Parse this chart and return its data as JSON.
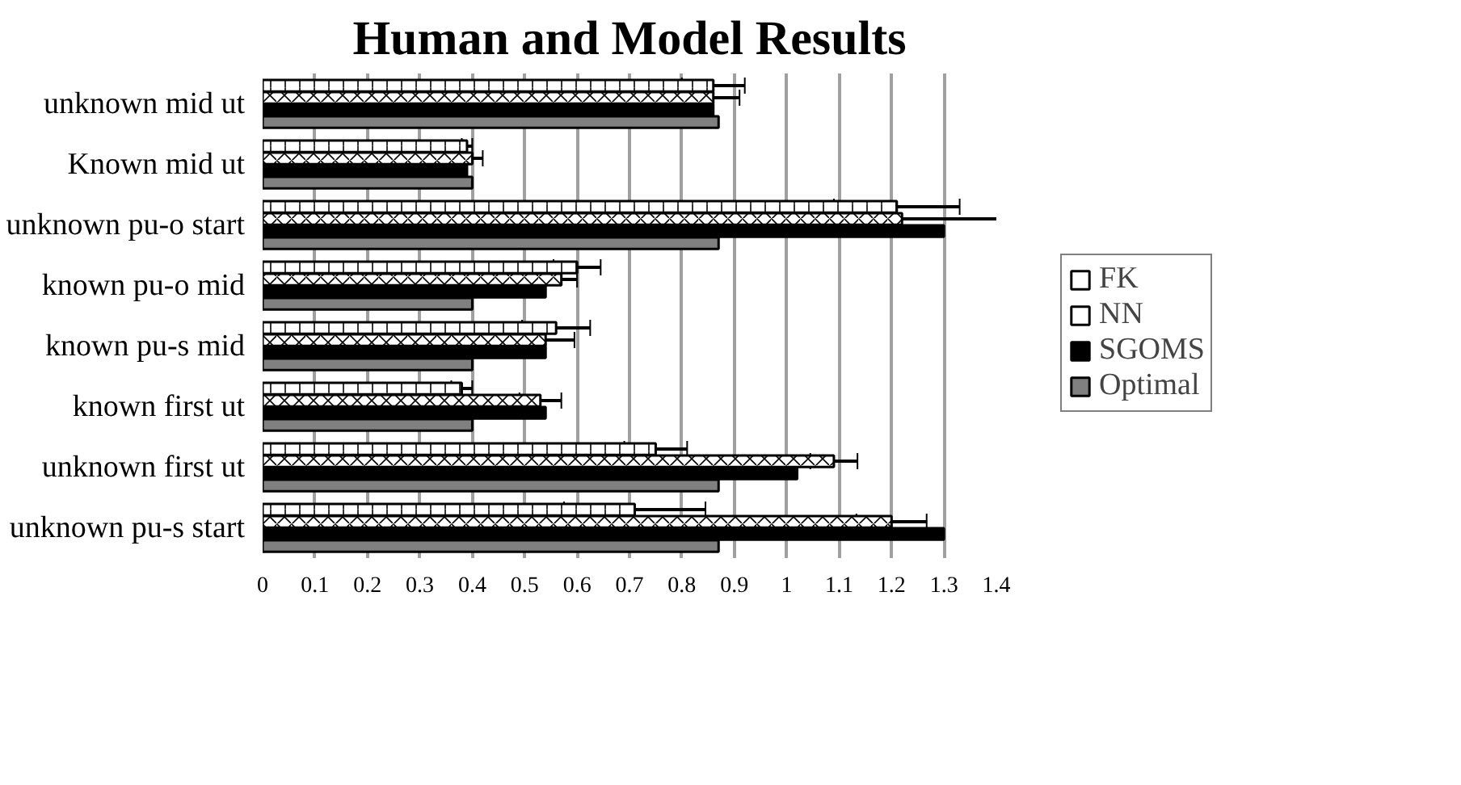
{
  "chart_data": {
    "type": "bar",
    "orientation": "horizontal",
    "title": "Human and Model Results",
    "categories": [
      "unknown mid ut",
      "Known mid ut",
      "unknown pu-o start",
      "known pu-o mid",
      "known pu-s mid",
      "known first ut",
      "unknown first ut",
      "unknown pu-s start"
    ],
    "series": [
      {
        "name": "FK",
        "color": "#ffffff",
        "values": [
          0.86,
          0.39,
          1.21,
          0.6,
          0.56,
          0.38,
          0.75,
          0.71
        ],
        "errors": [
          0.06,
          0.01,
          0.12,
          0.045,
          0.065,
          0.02,
          0.06,
          0.135
        ]
      },
      {
        "name": "NN",
        "color": "#ffffff",
        "values": [
          0.86,
          0.4,
          1.22,
          0.57,
          0.54,
          0.53,
          1.09,
          1.2
        ],
        "errors": [
          0.05,
          0.02,
          0.2,
          0.03,
          0.055,
          0.04,
          0.045,
          0.067
        ]
      },
      {
        "name": "SGOMS",
        "color": "#000000",
        "values": [
          0.86,
          0.39,
          1.3,
          0.54,
          0.54,
          0.54,
          1.02,
          1.3
        ]
      },
      {
        "name": "Optimal",
        "color": "#808080",
        "values": [
          0.87,
          0.4,
          0.87,
          0.4,
          0.4,
          0.4,
          0.87,
          0.87
        ]
      }
    ],
    "xlim": [
      0,
      1.4
    ],
    "xticks": [
      0,
      0.1,
      0.2,
      0.3,
      0.4,
      0.5,
      0.6,
      0.7,
      0.8,
      0.9,
      1,
      1.1,
      1.2,
      1.3,
      1.4
    ],
    "grid": "x",
    "legend": "right"
  }
}
